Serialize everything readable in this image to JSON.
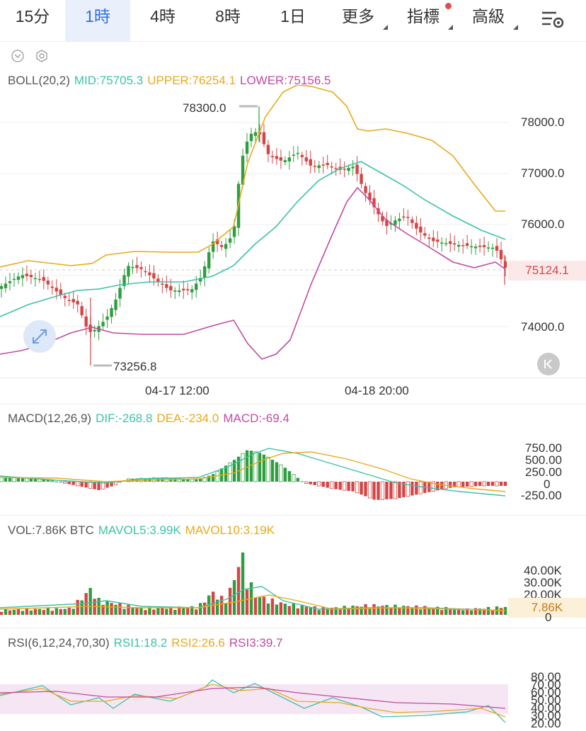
{
  "tabs": [
    {
      "label": "15分",
      "active": false,
      "caret": false,
      "dot": false
    },
    {
      "label": "1時",
      "active": true,
      "caret": false,
      "dot": false
    },
    {
      "label": "4時",
      "active": false,
      "caret": false,
      "dot": false
    },
    {
      "label": "8時",
      "active": false,
      "caret": false,
      "dot": false
    },
    {
      "label": "1日",
      "active": false,
      "caret": false,
      "dot": false
    },
    {
      "label": "更多",
      "active": false,
      "caret": true,
      "dot": false
    },
    {
      "label": "指標",
      "active": false,
      "caret": true,
      "dot": true
    },
    {
      "label": "高級",
      "active": false,
      "caret": true,
      "dot": false
    }
  ],
  "boll": {
    "name": "BOLL(20,2)",
    "mid": "MID:75705.3",
    "upper": "UPPER:76254.1",
    "lower": "LOWER:75156.5",
    "ticks": [
      "78000.0",
      "77000.0",
      "76000.0",
      "75000.0",
      "74000.0"
    ],
    "high_label": "78300.0",
    "low_label": "73256.8",
    "last_price": "75124.1",
    "time_labels": [
      "04-17 12:00",
      "04-18 20:00"
    ]
  },
  "macd": {
    "name": "MACD(12,26,9)",
    "dif": "DIF:-268.8",
    "dea": "DEA:-234.0",
    "macd": "MACD:-69.4",
    "ticks": [
      "750.00",
      "500.00",
      "250.00",
      "0",
      "-250.00"
    ]
  },
  "vol": {
    "name": "VOL:7.86K BTC",
    "ma5": "MAVOL5:3.99K",
    "ma10": "MAVOL10:3.19K",
    "ticks": [
      "40.00K",
      "30.00K",
      "20.00K",
      "0"
    ],
    "last": "7.86K"
  },
  "rsi": {
    "name": "RSI(6,12,24,70,30)",
    "rsi1": "RSI1:18.2",
    "rsi2": "RSI2:26.6",
    "rsi3": "RSI3:39.7",
    "ticks": [
      "80.00",
      "70.00",
      "60.00",
      "50.00",
      "40.00",
      "30.00",
      "20.00"
    ]
  },
  "colors": {
    "up": "#2e9e3e",
    "down": "#d64545",
    "mid": "#3cc2a8",
    "upper": "#e8a91c",
    "lower": "#c24aa0",
    "accent": "#2f6fe4"
  },
  "icons": [
    "settings-icon",
    "collapse-icon",
    "settings-small-icon",
    "expand-icon",
    "chevron-left-icon"
  ]
}
